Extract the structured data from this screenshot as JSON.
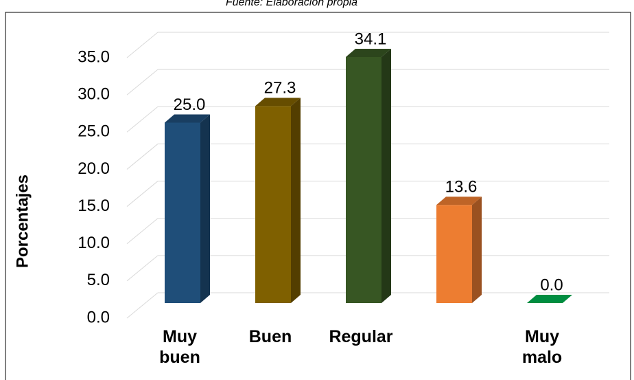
{
  "chart_data": {
    "type": "bar3d",
    "title": "Fuente: Elaboración propia",
    "y_label": "Porcentajes",
    "categories": [
      "Muy buen",
      "Buen",
      "Regular",
      null,
      "Muy malo"
    ],
    "values": [
      25.0,
      27.3,
      34.1,
      13.6,
      0.0
    ],
    "value_labels": [
      "25.0",
      "27.3",
      "34.1",
      "13.6",
      "0.0"
    ],
    "colors": [
      "#1f4e79",
      "#7f6000",
      "#375623",
      "#ed7d31",
      "#00b050"
    ],
    "ylim": [
      0,
      35
    ],
    "yticks": [
      {
        "value": 0,
        "label": "0.0"
      },
      {
        "value": 5,
        "label": "5.0"
      },
      {
        "value": 10,
        "label": "10.0"
      },
      {
        "value": 15,
        "label": "15.0"
      },
      {
        "value": 20,
        "label": "20.0"
      },
      {
        "value": 25,
        "label": "25.0"
      },
      {
        "value": 30,
        "label": "30.0"
      },
      {
        "value": 35,
        "label": "35.0"
      }
    ],
    "grid": true
  }
}
